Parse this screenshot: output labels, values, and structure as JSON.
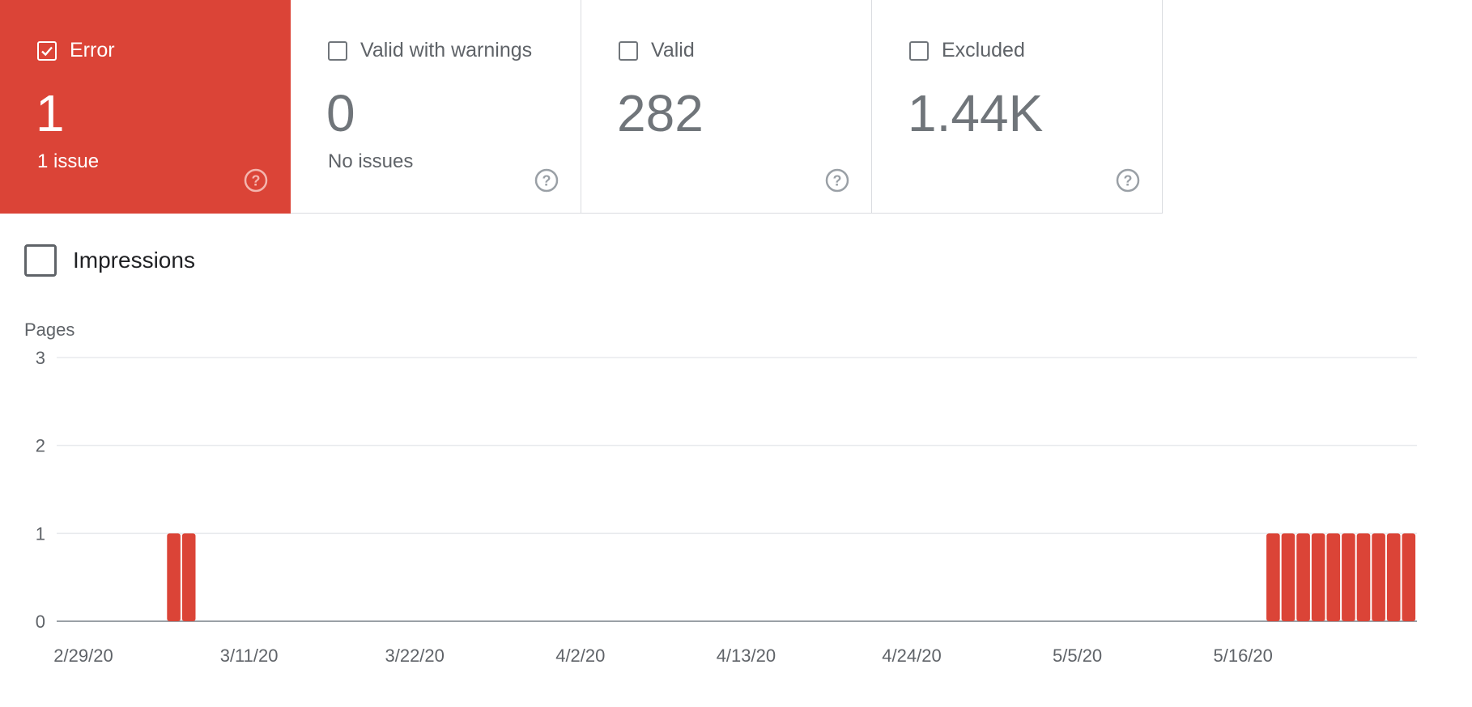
{
  "cards": [
    {
      "label": "Error",
      "value": "1",
      "sub": "1 issue",
      "checked": true
    },
    {
      "label": "Valid with warnings",
      "value": "0",
      "sub": "No issues",
      "checked": false
    },
    {
      "label": "Valid",
      "value": "282",
      "sub": "",
      "checked": false
    },
    {
      "label": "Excluded",
      "value": "1.44K",
      "sub": "",
      "checked": false
    }
  ],
  "impressions": {
    "label": "Impressions",
    "checked": false
  },
  "colors": {
    "error": "#db4437",
    "text": "#5f6368"
  },
  "icons": {
    "help": "help-circle-icon",
    "check": "check-icon"
  },
  "chart_data": {
    "type": "bar",
    "ylabel": "Pages",
    "ylim": [
      0,
      3
    ],
    "yticks": [
      0,
      1,
      2,
      3
    ],
    "xticks": [
      "2/29/20",
      "3/11/20",
      "3/22/20",
      "4/2/20",
      "4/13/20",
      "4/24/20",
      "5/5/20",
      "5/16/20"
    ],
    "x_start": "2/29/20",
    "series": [
      {
        "x": [
          "3/6/20",
          "3/7/20",
          "5/18/20",
          "5/19/20",
          "5/20/20",
          "5/21/20",
          "5/22/20",
          "5/23/20",
          "5/24/20",
          "5/25/20",
          "5/26/20",
          "5/27/20"
        ],
        "values": [
          1,
          1,
          1,
          1,
          1,
          1,
          1,
          1,
          1,
          1,
          1,
          1
        ]
      }
    ],
    "grid": true
  }
}
